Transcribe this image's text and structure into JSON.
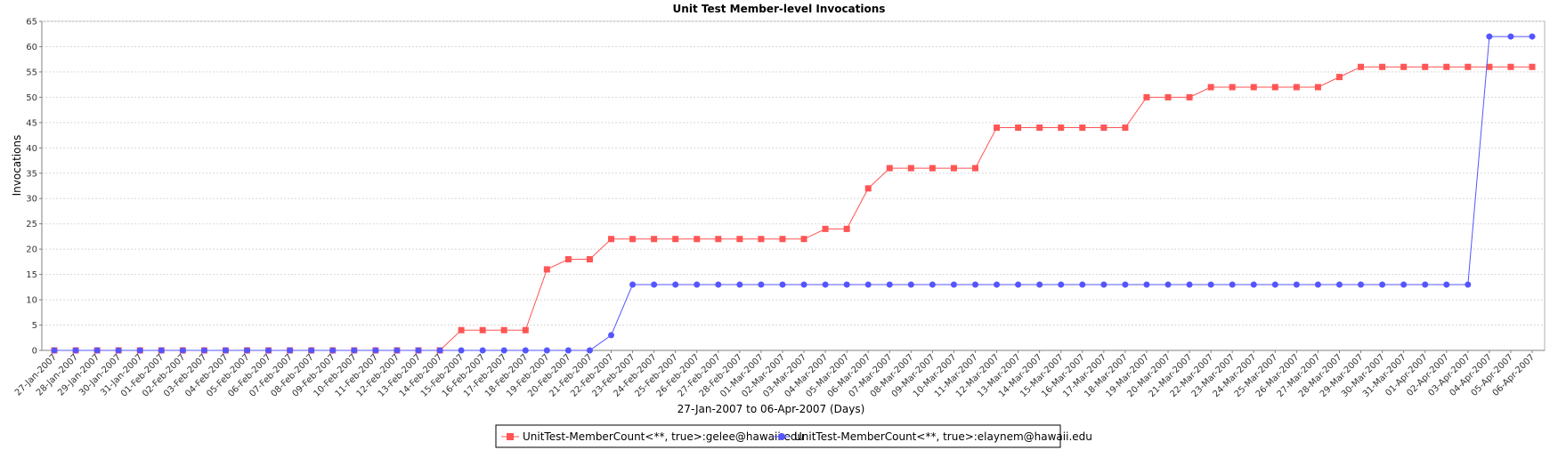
{
  "chart_data": {
    "type": "line",
    "title": "Unit Test Member-level Invocations",
    "xlabel": "27-Jan-2007 to 06-Apr-2007 (Days)",
    "ylabel": "Invocations",
    "ylim": [
      0,
      65
    ],
    "yticks": [
      0,
      5,
      10,
      15,
      20,
      25,
      30,
      35,
      40,
      45,
      50,
      55,
      60,
      65
    ],
    "grid": true,
    "legend_position": "bottom",
    "categories": [
      "27-Jan-2007",
      "28-Jan-2007",
      "29-Jan-2007",
      "30-Jan-2007",
      "31-Jan-2007",
      "01-Feb-2007",
      "02-Feb-2007",
      "03-Feb-2007",
      "04-Feb-2007",
      "05-Feb-2007",
      "06-Feb-2007",
      "07-Feb-2007",
      "08-Feb-2007",
      "09-Feb-2007",
      "10-Feb-2007",
      "11-Feb-2007",
      "12-Feb-2007",
      "13-Feb-2007",
      "14-Feb-2007",
      "15-Feb-2007",
      "16-Feb-2007",
      "17-Feb-2007",
      "18-Feb-2007",
      "19-Feb-2007",
      "20-Feb-2007",
      "21-Feb-2007",
      "22-Feb-2007",
      "23-Feb-2007",
      "24-Feb-2007",
      "25-Feb-2007",
      "26-Feb-2007",
      "27-Feb-2007",
      "28-Feb-2007",
      "01-Mar-2007",
      "02-Mar-2007",
      "03-Mar-2007",
      "04-Mar-2007",
      "05-Mar-2007",
      "06-Mar-2007",
      "07-Mar-2007",
      "08-Mar-2007",
      "09-Mar-2007",
      "10-Mar-2007",
      "11-Mar-2007",
      "12-Mar-2007",
      "13-Mar-2007",
      "14-Mar-2007",
      "15-Mar-2007",
      "16-Mar-2007",
      "17-Mar-2007",
      "18-Mar-2007",
      "19-Mar-2007",
      "20-Mar-2007",
      "21-Mar-2007",
      "22-Mar-2007",
      "23-Mar-2007",
      "24-Mar-2007",
      "25-Mar-2007",
      "26-Mar-2007",
      "27-Mar-2007",
      "28-Mar-2007",
      "29-Mar-2007",
      "30-Mar-2007",
      "31-Mar-2007",
      "01-Apr-2007",
      "02-Apr-2007",
      "03-Apr-2007",
      "04-Apr-2007",
      "05-Apr-2007",
      "06-Apr-2007"
    ],
    "series": [
      {
        "name": "UnitTest-MemberCount<**, true>:gelee@hawaii.edu",
        "color": "#ff5555",
        "marker": "square",
        "values": [
          0,
          0,
          0,
          0,
          0,
          0,
          0,
          0,
          0,
          0,
          0,
          0,
          0,
          0,
          0,
          0,
          0,
          0,
          0,
          4,
          4,
          4,
          4,
          16,
          18,
          18,
          22,
          22,
          22,
          22,
          22,
          22,
          22,
          22,
          22,
          22,
          24,
          24,
          32,
          36,
          36,
          36,
          36,
          36,
          44,
          44,
          44,
          44,
          44,
          44,
          44,
          50,
          50,
          50,
          52,
          52,
          52,
          52,
          52,
          52,
          54,
          56,
          56,
          56,
          56,
          56,
          56,
          56,
          56,
          56
        ]
      },
      {
        "name": "UnitTest-MemberCount<**, true>:elaynem@hawaii.edu",
        "color": "#5555ff",
        "marker": "circle",
        "values": [
          0,
          0,
          0,
          0,
          0,
          0,
          0,
          0,
          0,
          0,
          0,
          0,
          0,
          0,
          0,
          0,
          0,
          0,
          0,
          0,
          0,
          0,
          0,
          0,
          0,
          0,
          3,
          13,
          13,
          13,
          13,
          13,
          13,
          13,
          13,
          13,
          13,
          13,
          13,
          13,
          13,
          13,
          13,
          13,
          13,
          13,
          13,
          13,
          13,
          13,
          13,
          13,
          13,
          13,
          13,
          13,
          13,
          13,
          13,
          13,
          13,
          13,
          13,
          13,
          13,
          13,
          13,
          62,
          62,
          62
        ]
      }
    ]
  }
}
